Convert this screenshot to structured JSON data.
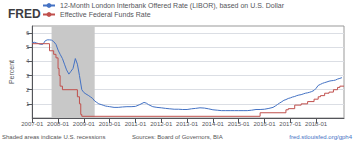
{
  "chart_data": {
    "type": "line",
    "title": "FRED",
    "ylabel": "Percent",
    "annotations": [
      "Shaded areas indicate U.S. recessions",
      "Sources: Board of Governors, BIA",
      "fred.stlouisfed.org/gph4"
    ],
    "shaded": [
      {
        "from": 2007.75,
        "to": 2009.42,
        "color": "#c8c8c8"
      }
    ],
    "xlim": [
      2007.0,
      2019.08
    ],
    "xticks": [
      {
        "value": 2007.0,
        "label": "2007-01"
      },
      {
        "value": 2008.0,
        "label": "2008-01"
      },
      {
        "value": 2009.0,
        "label": "2009-01"
      },
      {
        "value": 2010.0,
        "label": "2010-01"
      },
      {
        "value": 2011.0,
        "label": "2011-01"
      },
      {
        "value": 2012.0,
        "label": "2012-01"
      },
      {
        "value": 2013.0,
        "label": "2013-01"
      },
      {
        "value": 2014.0,
        "label": "2014-01"
      },
      {
        "value": 2015.0,
        "label": "2015-01"
      },
      {
        "value": 2016.0,
        "label": "2016-01"
      },
      {
        "value": 2017.0,
        "label": "2017-01"
      },
      {
        "value": 2018.0,
        "label": "2018-01"
      }
    ],
    "ylim": [
      0,
      6.5
    ],
    "yticks": [
      1,
      2,
      3,
      4,
      5,
      6
    ],
    "grid": true,
    "legend": "upper left",
    "series": [
      {
        "name": "12-Month London Interbank Offered Rate (LIBOR), based on U.S. Dollar",
        "color": "#4472c4",
        "x": [
          2007.0,
          2007.08,
          2007.17,
          2007.25,
          2007.33,
          2007.42,
          2007.5,
          2007.58,
          2007.67,
          2007.75,
          2007.83,
          2007.92,
          2008.0,
          2008.08,
          2008.17,
          2008.25,
          2008.33,
          2008.42,
          2008.5,
          2008.58,
          2008.67,
          2008.75,
          2008.83,
          2008.92,
          2009.0,
          2009.08,
          2009.17,
          2009.25,
          2009.33,
          2009.42,
          2009.5,
          2009.58,
          2009.67,
          2009.75,
          2009.83,
          2009.92,
          2010.0,
          2010.17,
          2010.33,
          2010.5,
          2010.67,
          2010.83,
          2011.0,
          2011.17,
          2011.33,
          2011.42,
          2011.5,
          2011.67,
          2011.83,
          2012.0,
          2012.17,
          2012.33,
          2012.5,
          2012.67,
          2012.83,
          2013.0,
          2013.17,
          2013.33,
          2013.5,
          2013.67,
          2013.83,
          2014.0,
          2014.17,
          2014.33,
          2014.5,
          2014.67,
          2014.83,
          2015.0,
          2015.17,
          2015.33,
          2015.5,
          2015.67,
          2015.83,
          2016.0,
          2016.17,
          2016.33,
          2016.42,
          2016.5,
          2016.58,
          2016.67,
          2016.75,
          2016.83,
          2016.92,
          2017.0,
          2017.08,
          2017.17,
          2017.25,
          2017.33,
          2017.42,
          2017.5,
          2017.58,
          2017.67,
          2017.75,
          2017.83,
          2017.92,
          2018.0,
          2018.08,
          2018.17,
          2018.25,
          2018.33,
          2018.42,
          2018.5,
          2018.58,
          2018.67,
          2018.75,
          2018.83,
          2018.92,
          2019.0
        ],
        "values": [
          5.32,
          5.35,
          5.3,
          5.25,
          5.2,
          5.22,
          5.45,
          5.52,
          5.52,
          5.5,
          5.4,
          5.2,
          4.8,
          4.5,
          4.2,
          3.8,
          3.4,
          3.1,
          3.3,
          3.5,
          4.2,
          3.8,
          3.0,
          2.0,
          1.8,
          1.7,
          1.6,
          1.5,
          1.4,
          1.2,
          1.1,
          1.0,
          0.95,
          0.9,
          0.85,
          0.82,
          0.8,
          0.75,
          0.75,
          0.78,
          0.8,
          0.8,
          0.82,
          0.95,
          1.1,
          1.05,
          0.95,
          0.8,
          0.75,
          0.72,
          0.68,
          0.65,
          0.62,
          0.62,
          0.6,
          0.6,
          0.65,
          0.68,
          0.72,
          0.7,
          0.65,
          0.58,
          0.55,
          0.52,
          0.52,
          0.52,
          0.52,
          0.52,
          0.52,
          0.52,
          0.55,
          0.6,
          0.6,
          0.62,
          0.68,
          0.75,
          0.85,
          0.95,
          1.05,
          1.15,
          1.25,
          1.3,
          1.38,
          1.42,
          1.48,
          1.52,
          1.58,
          1.62,
          1.65,
          1.7,
          1.75,
          1.78,
          1.82,
          1.87,
          1.95,
          2.1,
          2.3,
          2.38,
          2.45,
          2.5,
          2.55,
          2.6,
          2.63,
          2.65,
          2.68,
          2.75,
          2.8,
          2.85
        ]
      },
      {
        "name": "Effective Federal Funds Rate",
        "color": "#c0504d",
        "x": [
          2007.0,
          2007.67,
          2007.67,
          2007.83,
          2007.83,
          2007.92,
          2007.92,
          2008.0,
          2008.0,
          2008.04,
          2008.04,
          2008.08,
          2008.08,
          2008.17,
          2008.17,
          2008.75,
          2008.75,
          2008.83,
          2008.83,
          2008.88,
          2008.88,
          2008.92,
          2008.92,
          2015.83,
          2015.83,
          2016.83,
          2016.83,
          2016.92,
          2016.92,
          2017.17,
          2017.17,
          2017.42,
          2017.42,
          2017.67,
          2017.67,
          2017.92,
          2017.92,
          2018.08,
          2018.08,
          2018.17,
          2018.17,
          2018.33,
          2018.33,
          2018.5,
          2018.5,
          2018.67,
          2018.67,
          2018.83,
          2018.83,
          2018.92,
          2018.92,
          2019.08
        ],
        "values": [
          5.25,
          5.25,
          4.75,
          4.75,
          4.5,
          4.5,
          4.25,
          4.25,
          3.5,
          3.5,
          3.0,
          3.0,
          2.25,
          2.25,
          2.0,
          2.0,
          1.5,
          1.5,
          1.0,
          1.0,
          0.25,
          0.25,
          0.12,
          0.12,
          0.37,
          0.37,
          0.58,
          0.58,
          0.66,
          0.66,
          0.91,
          0.91,
          1.0,
          1.0,
          1.16,
          1.16,
          1.33,
          1.33,
          1.5,
          1.5,
          1.58,
          1.58,
          1.75,
          1.75,
          1.83,
          1.83,
          2.0,
          2.0,
          2.16,
          2.16,
          2.25,
          2.25
        ]
      }
    ]
  }
}
